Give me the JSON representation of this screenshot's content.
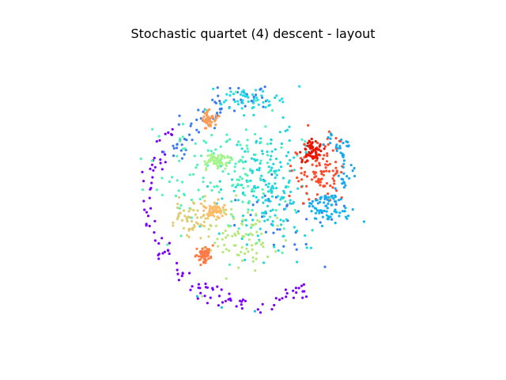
{
  "chart_data": {
    "type": "scatter",
    "title": "Stochastic quartet (4) descent - layout",
    "xlabel": "",
    "ylabel": "",
    "axes_visible": false,
    "grid": false,
    "legend": "none",
    "xlim": [
      -1.2,
      1.2
    ],
    "ylim": [
      -1.2,
      1.2
    ],
    "marker": "circle",
    "colormap": "rainbow",
    "clusters": [
      {
        "color": "#7a00ff",
        "kind": "ring",
        "cx": -0.05,
        "cy": -0.05,
        "r": 0.95,
        "spread": 0.08,
        "a0": 140,
        "a1": 300,
        "n": 110
      },
      {
        "color": "#3a7af0",
        "kind": "ring",
        "cx": 0.0,
        "cy": 0.0,
        "r": 0.85,
        "spread": 0.1,
        "a0": 85,
        "a1": 160,
        "n": 70
      },
      {
        "color": "#3a7af0",
        "kind": "blob",
        "cx": 0.25,
        "cy": -0.25,
        "sx": 0.45,
        "sy": 0.3,
        "n": 40
      },
      {
        "color": "#1fdde6",
        "kind": "blob",
        "cx": -0.05,
        "cy": 0.82,
        "sx": 0.3,
        "sy": 0.08,
        "n": 45
      },
      {
        "color": "#20d8dc",
        "kind": "blob",
        "cx": 0.08,
        "cy": 0.05,
        "sx": 0.35,
        "sy": 0.5,
        "n": 180
      },
      {
        "color": "#4ef2b8",
        "kind": "blob",
        "cx": -0.3,
        "cy": 0.15,
        "sx": 0.55,
        "sy": 0.45,
        "n": 150
      },
      {
        "color": "#a6f58c",
        "kind": "blob",
        "cx": -0.37,
        "cy": 0.27,
        "sx": 0.1,
        "sy": 0.06,
        "n": 60
      },
      {
        "color": "#b6e879",
        "kind": "blob",
        "cx": -0.15,
        "cy": -0.45,
        "sx": 0.3,
        "sy": 0.25,
        "n": 80
      },
      {
        "color": "#e0cd72",
        "kind": "blob",
        "cx": -0.6,
        "cy": -0.25,
        "sx": 0.18,
        "sy": 0.15,
        "n": 60
      },
      {
        "color": "#ffbb66",
        "kind": "blob",
        "cx": -0.4,
        "cy": -0.18,
        "sx": 0.08,
        "sy": 0.06,
        "n": 55
      },
      {
        "color": "#ff9a55",
        "kind": "blob",
        "cx": -0.46,
        "cy": 0.64,
        "sx": 0.06,
        "sy": 0.06,
        "n": 45
      },
      {
        "color": "#ff7a45",
        "kind": "blob",
        "cx": -0.5,
        "cy": -0.58,
        "sx": 0.07,
        "sy": 0.07,
        "n": 50
      },
      {
        "color": "#ff4a2a",
        "kind": "blob",
        "cx": 0.55,
        "cy": 0.2,
        "sx": 0.18,
        "sy": 0.22,
        "n": 110
      },
      {
        "color": "#e81400",
        "kind": "blob",
        "cx": 0.48,
        "cy": 0.36,
        "sx": 0.08,
        "sy": 0.08,
        "n": 60
      },
      {
        "color": "#1aa8ee",
        "kind": "ring",
        "cx": 0.45,
        "cy": 0.2,
        "r": 0.35,
        "spread": 0.07,
        "a0": -90,
        "a1": 60,
        "n": 80
      },
      {
        "color": "#0fb6f0",
        "kind": "blob",
        "cx": 0.65,
        "cy": -0.2,
        "sx": 0.18,
        "sy": 0.1,
        "n": 40
      },
      {
        "color": "#18c4e8",
        "kind": "points",
        "x": [
          -0.35,
          -0.04,
          -0.61,
          0.34,
          0.61
        ],
        "y": [
          -1.08,
          -1.08,
          -1.03,
          -0.36,
          -0.22
        ]
      }
    ]
  }
}
